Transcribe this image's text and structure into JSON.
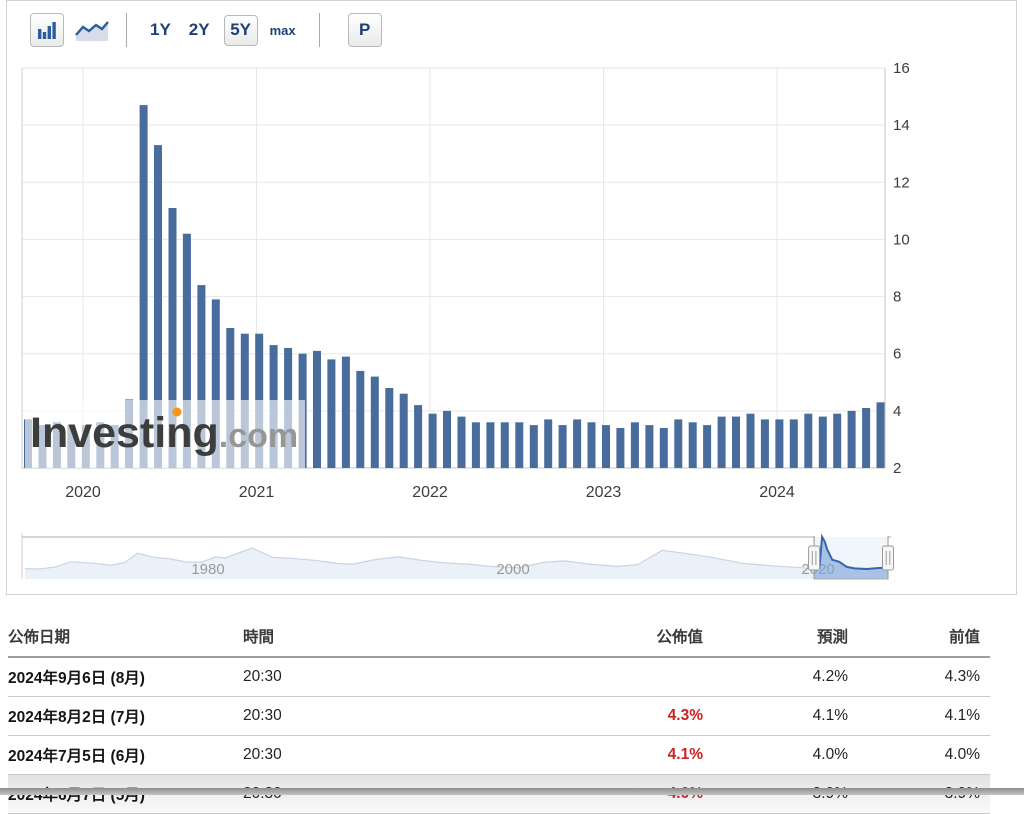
{
  "toolbar": {
    "chart_types": [
      {
        "name": "bar",
        "selected": true
      },
      {
        "name": "area",
        "selected": false
      }
    ],
    "ranges": [
      {
        "label": "1Y",
        "selected": false
      },
      {
        "label": "2Y",
        "selected": false
      },
      {
        "label": "5Y",
        "selected": true
      },
      {
        "label": "max",
        "selected": false
      }
    ],
    "p_label": "P"
  },
  "chart_data": {
    "type": "bar",
    "title": "",
    "unit": "%",
    "ylim": [
      2,
      16
    ],
    "y_ticks": [
      16,
      14,
      12,
      10,
      8,
      6,
      4,
      2
    ],
    "x_year_ticks": [
      "2020",
      "2021",
      "2022",
      "2023",
      "2024"
    ],
    "grid": true,
    "bar_color": "#486c9c",
    "axis_text_color": "#3c3c3c",
    "months": [
      "2019-08",
      "2019-09",
      "2019-10",
      "2019-11",
      "2019-12",
      "2020-01",
      "2020-02",
      "2020-03",
      "2020-04",
      "2020-05",
      "2020-06",
      "2020-07",
      "2020-08",
      "2020-09",
      "2020-10",
      "2020-11",
      "2020-12",
      "2021-01",
      "2021-02",
      "2021-03",
      "2021-04",
      "2021-05",
      "2021-06",
      "2021-07",
      "2021-08",
      "2021-09",
      "2021-10",
      "2021-11",
      "2021-12",
      "2022-01",
      "2022-02",
      "2022-03",
      "2022-04",
      "2022-05",
      "2022-06",
      "2022-07",
      "2022-08",
      "2022-09",
      "2022-10",
      "2022-11",
      "2022-12",
      "2023-01",
      "2023-02",
      "2023-03",
      "2023-04",
      "2023-05",
      "2023-06",
      "2023-07",
      "2023-08",
      "2023-09",
      "2023-10",
      "2023-11",
      "2023-12",
      "2024-01",
      "2024-02",
      "2024-03",
      "2024-04",
      "2024-05",
      "2024-06",
      "2024-07"
    ],
    "values": [
      3.7,
      3.5,
      3.6,
      3.5,
      3.5,
      3.6,
      3.5,
      4.4,
      14.7,
      13.3,
      11.1,
      10.2,
      8.4,
      7.9,
      6.9,
      6.7,
      6.7,
      6.3,
      6.2,
      6.0,
      6.1,
      5.8,
      5.9,
      5.4,
      5.2,
      4.8,
      4.6,
      4.2,
      3.9,
      4.0,
      3.8,
      3.6,
      3.6,
      3.6,
      3.6,
      3.5,
      3.7,
      3.5,
      3.7,
      3.6,
      3.5,
      3.4,
      3.6,
      3.5,
      3.4,
      3.7,
      3.6,
      3.5,
      3.8,
      3.8,
      3.9,
      3.7,
      3.7,
      3.7,
      3.9,
      3.8,
      3.9,
      4.0,
      4.1,
      4.3
    ],
    "watermark": {
      "text": "Investing",
      "suffix": ".com",
      "dot_color": "#f7941d"
    },
    "navigator": {
      "labels": [
        "1980",
        "2000",
        "2020"
      ],
      "label_years": [
        1980,
        2000,
        2020
      ],
      "range_years": [
        1968,
        2024.6
      ],
      "window_years": [
        2019.75,
        2024.6
      ],
      "points": [
        [
          1968,
          3.6
        ],
        [
          1969,
          3.5
        ],
        [
          1970,
          4.2
        ],
        [
          1971,
          6.0
        ],
        [
          1972.5,
          5.5
        ],
        [
          1973.6,
          4.8
        ],
        [
          1974.5,
          5.6
        ],
        [
          1975.4,
          9.0
        ],
        [
          1976.4,
          7.6
        ],
        [
          1977.5,
          7.0
        ],
        [
          1978.6,
          5.9
        ],
        [
          1979.6,
          5.9
        ],
        [
          1980.5,
          7.7
        ],
        [
          1981.1,
          7.3
        ],
        [
          1982.9,
          10.8
        ],
        [
          1984.2,
          7.6
        ],
        [
          1985.5,
          7.2
        ],
        [
          1987,
          6.5
        ],
        [
          1988.5,
          5.4
        ],
        [
          1989.5,
          5.2
        ],
        [
          1991,
          6.8
        ],
        [
          1992.5,
          7.7
        ],
        [
          1994,
          6.5
        ],
        [
          1995.5,
          5.6
        ],
        [
          1997,
          5.2
        ],
        [
          1998.5,
          4.4
        ],
        [
          2000.4,
          3.9
        ],
        [
          2002,
          5.8
        ],
        [
          2003.4,
          6.3
        ],
        [
          2005,
          5.2
        ],
        [
          2006.9,
          4.4
        ],
        [
          2008.2,
          5.0
        ],
        [
          2009.8,
          10.0
        ],
        [
          2011.2,
          9.0
        ],
        [
          2013,
          7.6
        ],
        [
          2015,
          5.5
        ],
        [
          2017,
          4.6
        ],
        [
          2019,
          3.9
        ],
        [
          2019.8,
          3.5
        ],
        [
          2020.1,
          3.8
        ],
        [
          2020.28,
          14.7
        ],
        [
          2020.45,
          13.0
        ],
        [
          2020.62,
          10.2
        ],
        [
          2020.95,
          6.7
        ],
        [
          2021.4,
          6.0
        ],
        [
          2021.9,
          4.2
        ],
        [
          2022.4,
          3.7
        ],
        [
          2023.2,
          3.5
        ],
        [
          2023.9,
          3.8
        ],
        [
          2024.35,
          3.9
        ],
        [
          2024.6,
          4.3
        ]
      ]
    }
  },
  "table": {
    "headers": [
      "公佈日期",
      "時間",
      "公佈值",
      "預測",
      "前值"
    ],
    "rows": [
      {
        "date": "2024年9月6日 (8月)",
        "time": "20:30",
        "actual": "",
        "forecast": "4.2%",
        "previous": "4.3%",
        "actual_red": false,
        "shaded": false
      },
      {
        "date": "2024年8月2日 (7月)",
        "time": "20:30",
        "actual": "4.3%",
        "forecast": "4.1%",
        "previous": "4.1%",
        "actual_red": true,
        "shaded": false
      },
      {
        "date": "2024年7月5日 (6月)",
        "time": "20:30",
        "actual": "4.1%",
        "forecast": "4.0%",
        "previous": "4.0%",
        "actual_red": true,
        "shaded": false
      },
      {
        "date": "2024年6月7日 (5月)",
        "time": "20:30",
        "actual": "4.0%",
        "forecast": "3.9%",
        "previous": "3.9%",
        "actual_red": true,
        "shaded": true
      }
    ]
  },
  "colors": {
    "accent_navy": "#1d4077",
    "negative_red": "#cf2020",
    "bar_blue": "#486c9c"
  }
}
